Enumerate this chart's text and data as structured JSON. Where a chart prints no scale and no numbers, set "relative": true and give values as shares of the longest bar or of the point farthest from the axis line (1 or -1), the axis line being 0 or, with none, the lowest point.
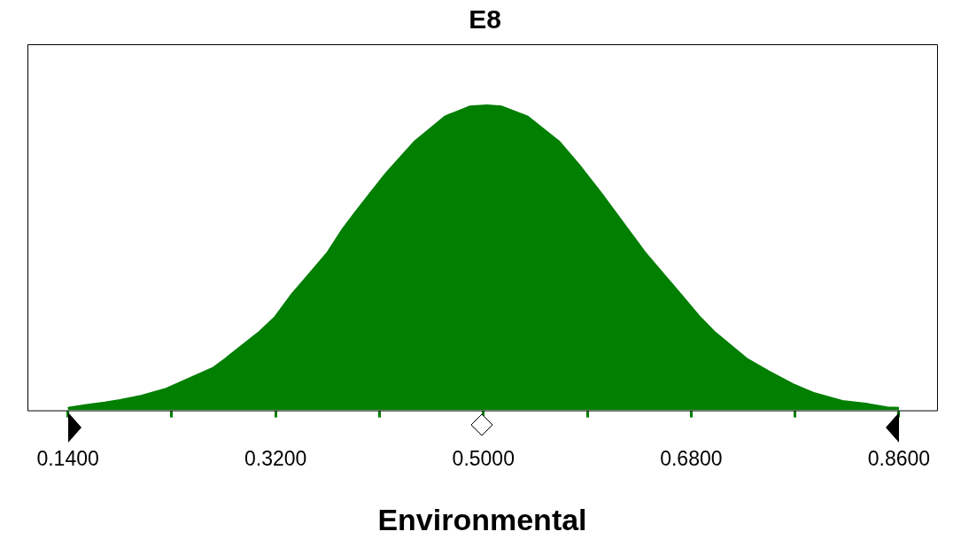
{
  "chart_data": {
    "type": "area",
    "title": "E8",
    "xlabel": "Environmental",
    "relative": true,
    "color": "#007f00",
    "x": [
      0.14,
      0.156,
      0.172,
      0.185,
      0.204,
      0.225,
      0.241,
      0.266,
      0.276,
      0.306,
      0.319,
      0.333,
      0.349,
      0.365,
      0.378,
      0.389,
      0.402,
      0.416,
      0.432,
      0.44,
      0.467,
      0.488,
      0.503,
      0.516,
      0.538,
      0.566,
      0.583,
      0.602,
      0.621,
      0.64,
      0.656,
      0.674,
      0.688,
      0.7,
      0.728,
      0.747,
      0.768,
      0.787,
      0.811,
      0.833,
      0.85,
      0.86
    ],
    "values": [
      0.008,
      0.018,
      0.026,
      0.034,
      0.048,
      0.071,
      0.098,
      0.14,
      0.168,
      0.258,
      0.304,
      0.376,
      0.447,
      0.518,
      0.594,
      0.649,
      0.712,
      0.779,
      0.846,
      0.88,
      0.964,
      0.996,
      1,
      0.996,
      0.964,
      0.88,
      0.804,
      0.712,
      0.615,
      0.518,
      0.447,
      0.367,
      0.304,
      0.258,
      0.17,
      0.128,
      0.086,
      0.056,
      0.031,
      0.021,
      0.01,
      0.008
    ],
    "xlim": [
      0.105,
      0.893
    ],
    "xticks": [
      {
        "value": 0.14,
        "label": "0.1400"
      },
      {
        "value": 0.23,
        "label": null
      },
      {
        "value": 0.32,
        "label": "0.3200"
      },
      {
        "value": 0.41,
        "label": null
      },
      {
        "value": 0.5,
        "label": "0.5000"
      },
      {
        "value": 0.59,
        "label": null
      },
      {
        "value": 0.68,
        "label": "0.6800"
      },
      {
        "value": 0.77,
        "label": null
      },
      {
        "value": 0.86,
        "label": "0.8600"
      }
    ],
    "grid": false,
    "legend": false
  }
}
